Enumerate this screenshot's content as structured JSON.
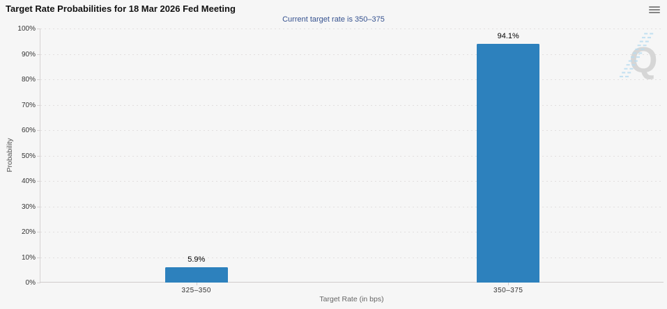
{
  "header": {
    "menu_icon": "hamburger-menu"
  },
  "chart_data": {
    "type": "bar",
    "title": "Target Rate Probabilities for 18 Mar 2026 Fed Meeting",
    "subtitle": "Current target rate is 350–375",
    "categories": [
      "325–350",
      "350–375"
    ],
    "values": [
      5.9,
      94.1
    ],
    "value_labels": [
      "5.9%",
      "94.1%"
    ],
    "xlabel": "Target Rate (in bps)",
    "ylabel": "Probability",
    "ylim": [
      0,
      100
    ],
    "ytick_step": 10,
    "ytick_labels": [
      "0%",
      "10%",
      "20%",
      "30%",
      "40%",
      "50%",
      "60%",
      "70%",
      "80%",
      "90%",
      "100%"
    ],
    "grid": "horizontal-dotted",
    "legend_position": "none",
    "bar_color": "#2d81bd"
  },
  "watermark": {
    "letter": "Q"
  },
  "colors": {
    "background": "#f6f6f6",
    "subtitle_text": "#35518f",
    "bar": "#2d81bd",
    "axis_text": "#333333",
    "axis_title_text": "#666666",
    "grid_dot": "#e2dfdf",
    "watermark_gray": "#d6d6d6",
    "watermark_blue": "#b9ddf1"
  }
}
